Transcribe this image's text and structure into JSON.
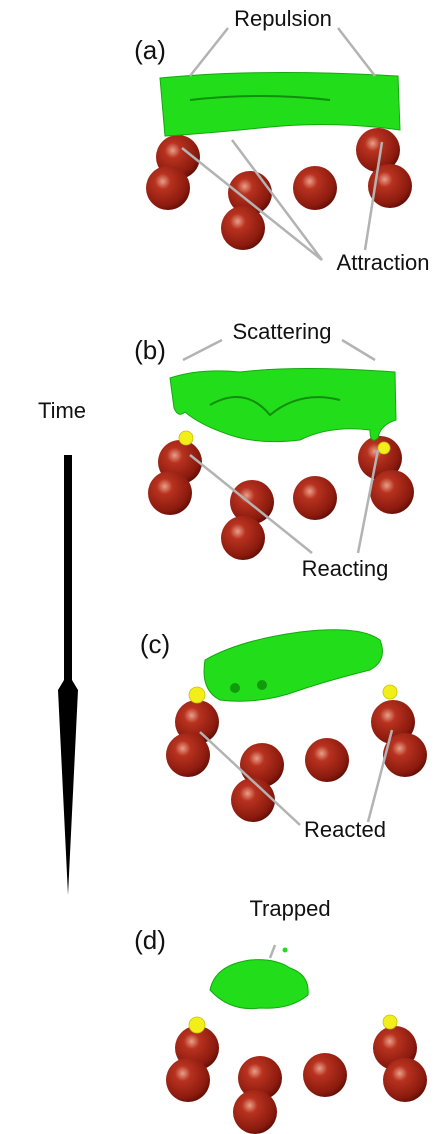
{
  "time": "Time",
  "panels": [
    {
      "label": "(a)",
      "annotations": [
        "Repulsion",
        "Attraction"
      ]
    },
    {
      "label": "(b)",
      "annotations": [
        "Scattering",
        "Reacting"
      ]
    },
    {
      "label": "(c)",
      "annotations": [
        "Reacted"
      ]
    },
    {
      "label": "(d)",
      "annotations": [
        "Trapped"
      ]
    }
  ]
}
